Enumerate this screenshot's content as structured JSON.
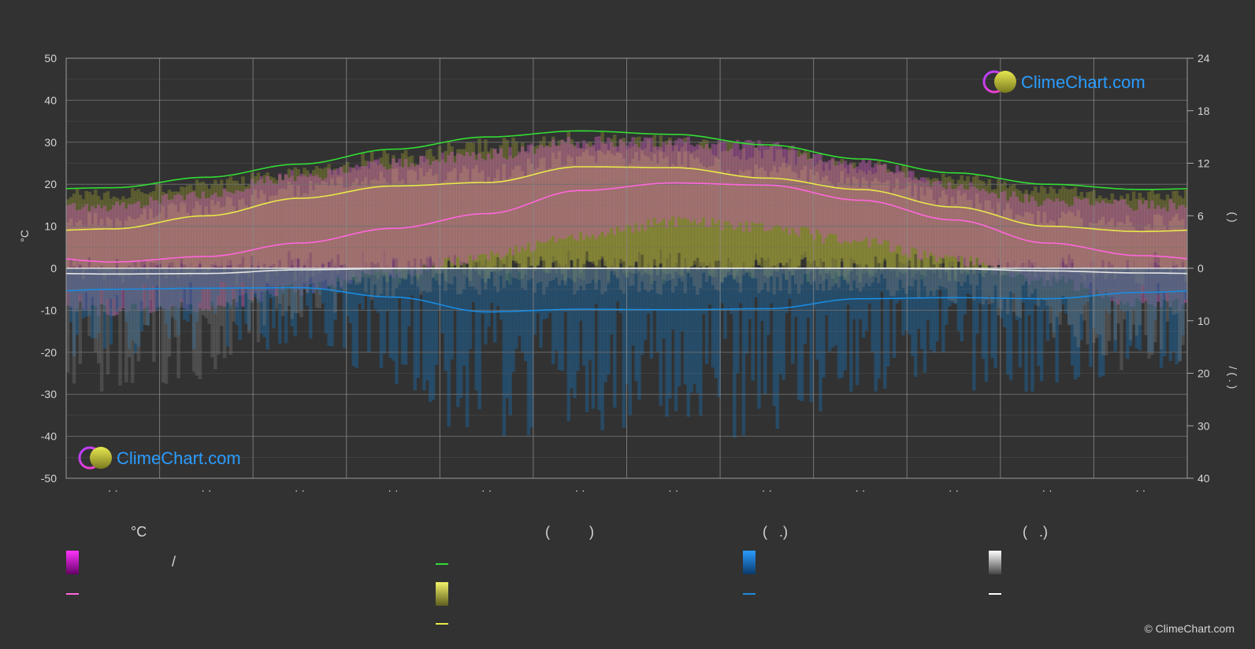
{
  "chart_data": {
    "type": "line",
    "y_left": {
      "label": "°C",
      "ticks": [
        50,
        40,
        30,
        20,
        10,
        0,
        -10,
        -20,
        -30,
        -40,
        -50
      ],
      "range": [
        -50,
        50
      ]
    },
    "y_right_top": {
      "label": "(   )",
      "ticks": [
        24,
        18,
        12,
        6,
        0
      ],
      "range": [
        0,
        24
      ]
    },
    "y_right_bottom": {
      "label": "/ ( . )",
      "ticks": [
        0,
        10,
        20,
        30,
        40
      ],
      "range": [
        0,
        40
      ]
    },
    "months": [
      "· ·",
      "· ·",
      "· ·",
      "· ·",
      "· ·",
      "· ·",
      "· ·",
      "· ·",
      "· ·",
      "· ·",
      "· ·",
      "· ·"
    ],
    "grid": true,
    "series": [
      {
        "key": "daylight",
        "color": "#33dd33",
        "axis": "hours",
        "values": [
          9.2,
          10.4,
          11.9,
          13.6,
          15.0,
          15.7,
          15.3,
          14.1,
          12.5,
          10.9,
          9.6,
          9.0
        ]
      },
      {
        "key": "sunshine",
        "color": "#e8e84a",
        "axis": "hours",
        "values": [
          4.5,
          6.0,
          8.0,
          9.4,
          9.8,
          11.6,
          11.5,
          10.3,
          9.0,
          7.0,
          4.8,
          4.2
        ]
      },
      {
        "key": "temp_mean",
        "color": "#ff66dd",
        "axis": "celsius",
        "values": [
          1.5,
          2.8,
          6.0,
          9.5,
          13.0,
          18.5,
          20.3,
          19.8,
          16.2,
          11.5,
          6.0,
          3.0
        ]
      },
      {
        "key": "rain",
        "color": "#1a8ce0",
        "axis": "mm",
        "values": [
          4.0,
          3.8,
          3.7,
          5.5,
          8.3,
          7.8,
          7.9,
          7.7,
          5.8,
          5.6,
          5.8,
          4.6
        ]
      },
      {
        "key": "snow",
        "color": "#e6e6e6",
        "axis": "mm",
        "values": [
          1.1,
          1.0,
          0.3,
          0.05,
          0,
          0,
          0,
          0,
          0,
          0.1,
          0.5,
          0.9
        ]
      }
    ],
    "bands": {
      "temp_max_daily": [
        15,
        18,
        22,
        25,
        27,
        30,
        30,
        29,
        25,
        20,
        16,
        15
      ],
      "temp_min_daily": [
        -10,
        -9,
        -5,
        -1,
        3,
        8,
        11,
        10,
        6,
        2,
        -3,
        -8
      ]
    }
  },
  "logo": {
    "text": "ClimeChart.com"
  },
  "legend": {
    "col1_title": "°C",
    "col1_row1": "/",
    "col2_title": "(          )",
    "col3_title": "(   .)",
    "col4_title": "(   .)"
  },
  "colors": {
    "background": "#323232",
    "grid": "#6e6e6e",
    "daylight": "#33dd33",
    "sunshine": "#e8e84a",
    "temperature": "#ff66dd",
    "rain": "#1a8ce0",
    "snow": "#e6e6e6"
  },
  "copyright": "© ClimeChart.com"
}
